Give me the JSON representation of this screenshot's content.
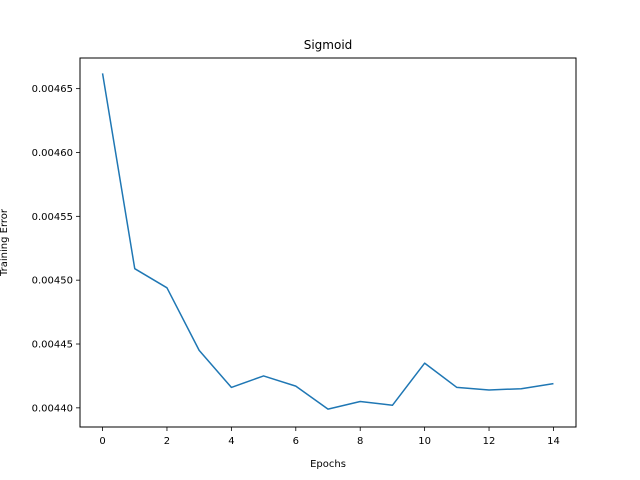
{
  "chart_data": {
    "type": "line",
    "title": "Sigmoid",
    "xlabel": "Epochs",
    "ylabel": "Training Error",
    "xlim": [
      -0.7,
      14.7
    ],
    "ylim": [
      0.004385,
      0.004674
    ],
    "xticks": [
      0,
      2,
      4,
      6,
      8,
      10,
      12,
      14
    ],
    "xtick_labels": [
      "0",
      "2",
      "4",
      "6",
      "8",
      "10",
      "12",
      "14"
    ],
    "yticks": [
      0.0044,
      0.00445,
      0.0045,
      0.00455,
      0.0046,
      0.00465
    ],
    "ytick_labels": [
      "0.00440",
      "0.00445",
      "0.00450",
      "0.00455",
      "0.00460",
      "0.00465"
    ],
    "grid": false,
    "series": [
      {
        "color": "#1f77b4",
        "x": [
          0,
          1,
          2,
          3,
          4,
          5,
          6,
          7,
          8,
          9,
          10,
          11,
          12,
          13,
          14
        ],
        "y": [
          0.004662,
          0.004509,
          0.004494,
          0.004445,
          0.004416,
          0.004425,
          0.004417,
          0.004399,
          0.004405,
          0.004402,
          0.004435,
          0.004416,
          0.004414,
          0.004415,
          0.004419
        ]
      }
    ]
  }
}
